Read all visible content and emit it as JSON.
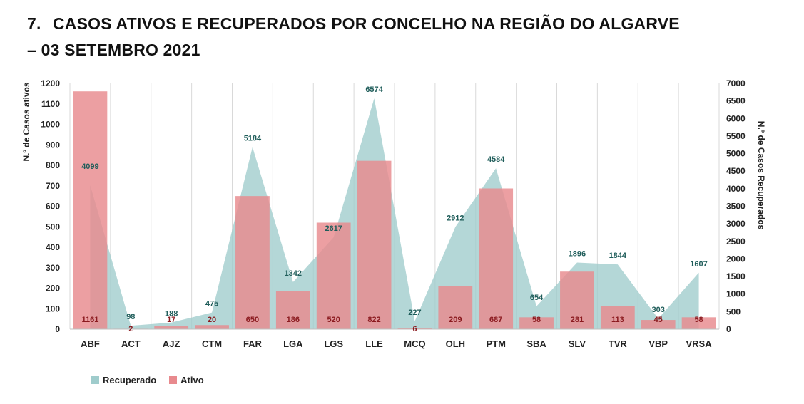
{
  "header": {
    "number": "7.",
    "title_line1": "CASOS ATIVOS E RECUPERADOS POR CONCELHO NA REGIÃO DO ALGARVE",
    "title_line2": "– 03 SETEMBRO 2021"
  },
  "legend": {
    "recovered_label": "Recuperado",
    "active_label": "Ativo"
  },
  "colors": {
    "recovered_fill": "#9fcccc",
    "active_fill": "#e88a8e",
    "recovered_text": "#1f5d5a",
    "active_text": "#8b1a1f",
    "grid": "#d9d9d9"
  },
  "chart_data": {
    "type": "bar",
    "title": "CASOS ATIVOS E RECUPERADOS POR CONCELHO NA REGIÃO DO ALGARVE – 03 SETEMBRO 2021",
    "categories": [
      "ABF",
      "ACT",
      "AJZ",
      "CTM",
      "FAR",
      "LGA",
      "LGS",
      "LLE",
      "MCQ",
      "OLH",
      "PTM",
      "SBA",
      "SLV",
      "TVR",
      "VBP",
      "VRSA"
    ],
    "series": [
      {
        "name": "Ativo",
        "type": "bar",
        "axis": "left",
        "values": [
          1161,
          2,
          17,
          20,
          650,
          186,
          520,
          822,
          6,
          209,
          687,
          58,
          281,
          113,
          45,
          58
        ]
      },
      {
        "name": "Recuperado",
        "type": "area",
        "axis": "right",
        "values": [
          4099,
          98,
          188,
          475,
          5184,
          1342,
          2617,
          6574,
          227,
          2912,
          4584,
          654,
          1896,
          1844,
          303,
          1607
        ]
      }
    ],
    "ylabel": "N.º de Casos ativos",
    "y2label": "N.º de Casos Recuperados",
    "ylim": [
      0,
      1200
    ],
    "y2lim": [
      0,
      7000
    ],
    "yticks": [
      0,
      100,
      200,
      300,
      400,
      500,
      600,
      700,
      800,
      900,
      1000,
      1100,
      1200
    ],
    "y2ticks": [
      0,
      500,
      1000,
      1500,
      2000,
      2500,
      3000,
      3500,
      4000,
      4500,
      5000,
      5500,
      6000,
      6500,
      7000
    ],
    "legend": "bottom-left"
  }
}
